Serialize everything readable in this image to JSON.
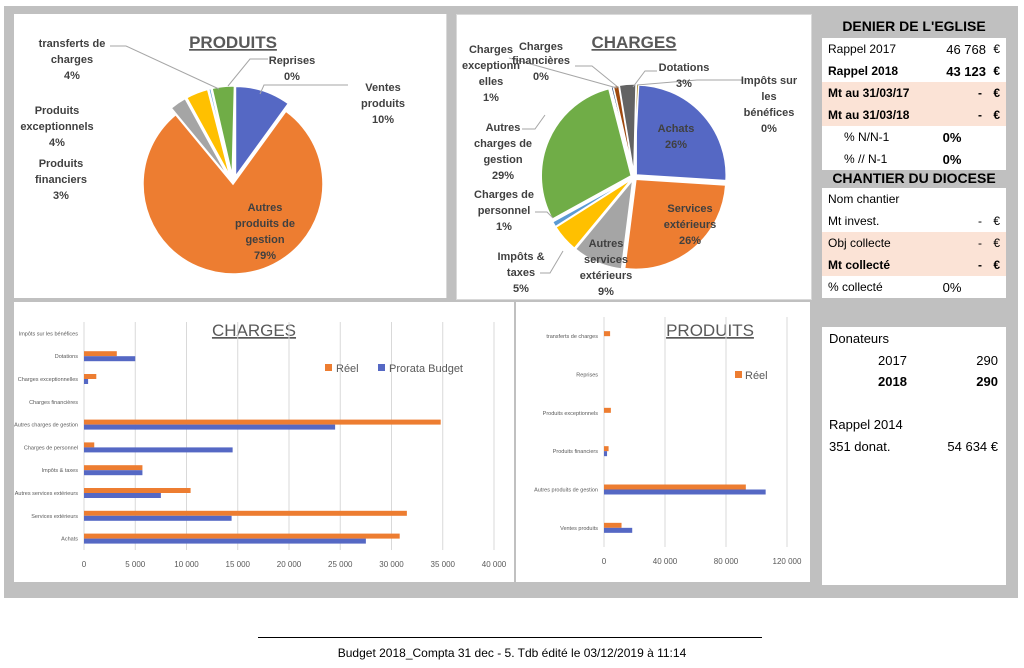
{
  "colors": {
    "blue": "#5568c4",
    "orange": "#ed7d31",
    "gray": "#a5a5a5",
    "yellow": "#ffc000",
    "green": "#70ad47",
    "lightblue": "#5b9bd5",
    "darkred": "#9e480e",
    "darkgray": "#636363",
    "pink": "#fbe3d6"
  },
  "chart_data": [
    {
      "type": "pie",
      "title": "PRODUITS",
      "slices": [
        {
          "label": "Ventes produits",
          "percent": 10,
          "color": "#5568c4",
          "label_text": "Ventes produits\n10%"
        },
        {
          "label": "Autres produits de gestion",
          "percent": 79,
          "color": "#ed7d31",
          "label_text": "Autres produits de gestion\n79%"
        },
        {
          "label": "Produits financiers",
          "percent": 3,
          "color": "#a5a5a5",
          "label_text": "Produits financiers\n3%"
        },
        {
          "label": "Produits exceptionnels",
          "percent": 4,
          "color": "#ffc000",
          "label_text": "Produits exceptionnels\n4%"
        },
        {
          "label": "Reprises",
          "percent": 0,
          "color": "#5b9bd5",
          "label_text": "Reprises\n0%"
        },
        {
          "label": "transferts de charges",
          "percent": 4,
          "color": "#70ad47",
          "label_text": "transferts de charges\n4%"
        }
      ]
    },
    {
      "type": "pie",
      "title": "CHARGES",
      "slices": [
        {
          "label": "Achats",
          "percent": 26,
          "color": "#5568c4"
        },
        {
          "label": "Services extérieurs",
          "percent": 26,
          "color": "#ed7d31"
        },
        {
          "label": "Autres services extérieurs",
          "percent": 9,
          "color": "#a5a5a5"
        },
        {
          "label": "Impôts & taxes",
          "percent": 5,
          "color": "#ffc000"
        },
        {
          "label": "Charges de personnel",
          "percent": 1,
          "color": "#5b9bd5"
        },
        {
          "label": "Autres charges de gestion",
          "percent": 29,
          "color": "#70ad47"
        },
        {
          "label": "Charges financières",
          "percent": 0,
          "color": "#264478"
        },
        {
          "label": "Charges exceptionnelles",
          "percent": 1,
          "color": "#9e480e"
        },
        {
          "label": "Dotations",
          "percent": 3,
          "color": "#636363"
        },
        {
          "label": "Impôts sur les bénéfices",
          "percent": 0,
          "color": "#997300"
        }
      ]
    },
    {
      "type": "bar",
      "orientation": "horizontal",
      "title": "CHARGES",
      "categories": [
        "Impôts sur les bénéfices",
        "Dotations",
        "Charges exceptionnelles",
        "Charges financières",
        "Autres charges de gestion",
        "Charges de personnel",
        "Impôts & taxes",
        "Autres services extérieurs",
        "Services extérieurs",
        "Achats"
      ],
      "series": [
        {
          "name": "Réel",
          "color": "#ed7d31",
          "values": [
            0,
            3200,
            1200,
            0,
            34800,
            1000,
            5700,
            10400,
            31500,
            30800
          ]
        },
        {
          "name": "Prorata Budget",
          "color": "#5568c4",
          "values": [
            0,
            5000,
            400,
            0,
            24500,
            14500,
            5700,
            7500,
            14400,
            27500
          ]
        }
      ],
      "xlim": [
        0,
        40000
      ],
      "xticks": [
        "0",
        "5 000",
        "10 000",
        "15 000",
        "20 000",
        "25 000",
        "30 000",
        "35 000",
        "40 000"
      ],
      "tick_values": [
        0,
        5000,
        10000,
        15000,
        20000,
        25000,
        30000,
        35000,
        40000
      ],
      "grid": true,
      "legend": "top-right"
    },
    {
      "type": "bar",
      "orientation": "horizontal",
      "title": "PRODUITS",
      "categories": [
        "transferts de charges",
        "Reprises",
        "Produits exceptionnels",
        "Produits financiers",
        "Autres produits de gestion",
        "Ventes produits"
      ],
      "series": [
        {
          "name": "Réel",
          "color": "#ed7d31",
          "values": [
            4000,
            0,
            4500,
            3000,
            93000,
            11500
          ]
        },
        {
          "name": "",
          "color": "#5568c4",
          "values": [
            0,
            0,
            0,
            2000,
            106000,
            18500
          ]
        }
      ],
      "xlim": [
        0,
        120000
      ],
      "xticks": [
        "0",
        "40 000",
        "80 000",
        "120 000"
      ],
      "tick_values": [
        0,
        40000,
        80000,
        120000
      ],
      "grid": true,
      "legend": "right"
    }
  ],
  "denier": {
    "title": "DENIER DE L'EGLISE",
    "rows": [
      {
        "label": "Rappel  2017",
        "value": "46 768",
        "cur": "€",
        "bold": false,
        "pink": false
      },
      {
        "label": "Rappel  2018",
        "value": "43 123",
        "cur": "€",
        "bold": true,
        "pink": false
      },
      {
        "label": "Mt au 31/03/17",
        "value": "-",
        "cur": "€",
        "bold": true,
        "pink": true
      },
      {
        "label": "Mt au 31/03/18",
        "value": "-",
        "cur": "€",
        "bold": true,
        "pink": true
      },
      {
        "label": "% N/N-1",
        "value": "0%",
        "cur": "",
        "bold": false,
        "pink": false
      },
      {
        "label": "% // N-1",
        "value": "0%",
        "cur": "",
        "bold": false,
        "pink": false
      }
    ]
  },
  "chantier": {
    "title": "CHANTIER DU DIOCESE",
    "rows": [
      {
        "label": "Nom chantier",
        "value": "",
        "cur": ""
      },
      {
        "label": "Mt invest.",
        "value": "-",
        "cur": "€"
      },
      {
        "label": "Obj collecte",
        "value": "-",
        "cur": "€"
      },
      {
        "label": "Mt collecté",
        "value": "-",
        "cur": "€"
      },
      {
        "label": "% collecté",
        "value": "0%",
        "cur": ""
      }
    ]
  },
  "donateurs": {
    "title": "Donateurs",
    "y2017_label": "2017",
    "y2017_value": "290",
    "y2018_label": "2018",
    "y2018_value": "290",
    "rappel_label": "Rappel 2014",
    "donat_label": "351 donat.",
    "donat_value": "54 634 €"
  },
  "footer": {
    "text": "Budget 2018_Compta 31 dec - 5. Tdb édité le 03/12/2019 à 11:14"
  }
}
